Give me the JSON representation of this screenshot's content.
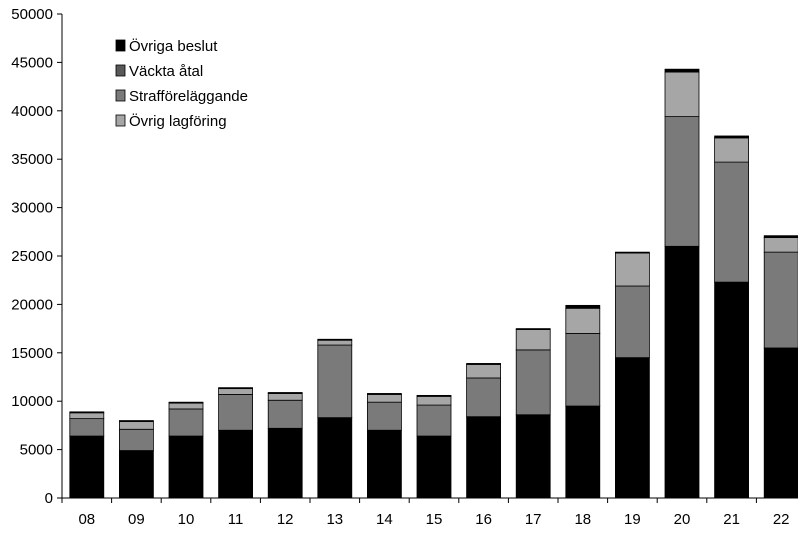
{
  "chart_data": {
    "type": "bar",
    "stacked": true,
    "categories": [
      "08",
      "09",
      "10",
      "11",
      "12",
      "13",
      "14",
      "15",
      "16",
      "17",
      "18",
      "19",
      "20",
      "21",
      "22"
    ],
    "series": [
      {
        "name": "Övriga beslut",
        "color": "#000000",
        "values": [
          6400,
          4900,
          6400,
          7000,
          7200,
          8300,
          7000,
          6400,
          8400,
          8600,
          9500,
          14500,
          26000,
          22300,
          15500
        ]
      },
      {
        "name": "Väckta åtal",
        "color": "#595959",
        "values": [
          0,
          0,
          0,
          0,
          0,
          0,
          0,
          0,
          0,
          0,
          0,
          0,
          0,
          0,
          0
        ]
      },
      {
        "name": "Strafföreläggande",
        "color": "#7a7a7a",
        "values": [
          1800,
          2200,
          2800,
          3700,
          2900,
          7500,
          2900,
          3200,
          4000,
          6700,
          7500,
          7400,
          13400,
          12400,
          9900
        ]
      },
      {
        "name": "Övrig lagföring",
        "color": "#a6a6a6",
        "values": [
          600,
          800,
          600,
          600,
          700,
          500,
          800,
          900,
          1400,
          2100,
          2600,
          3400,
          4600,
          2500,
          1500
        ]
      }
    ],
    "cap": {
      "values": [
        100,
        100,
        100,
        100,
        100,
        100,
        100,
        100,
        100,
        100,
        300,
        100,
        300,
        200,
        200
      ]
    },
    "ylim": [
      0,
      50000
    ],
    "yticks": [
      0,
      5000,
      10000,
      15000,
      20000,
      25000,
      30000,
      35000,
      40000,
      45000,
      50000
    ],
    "grid": false,
    "legend_position": "top-left"
  }
}
